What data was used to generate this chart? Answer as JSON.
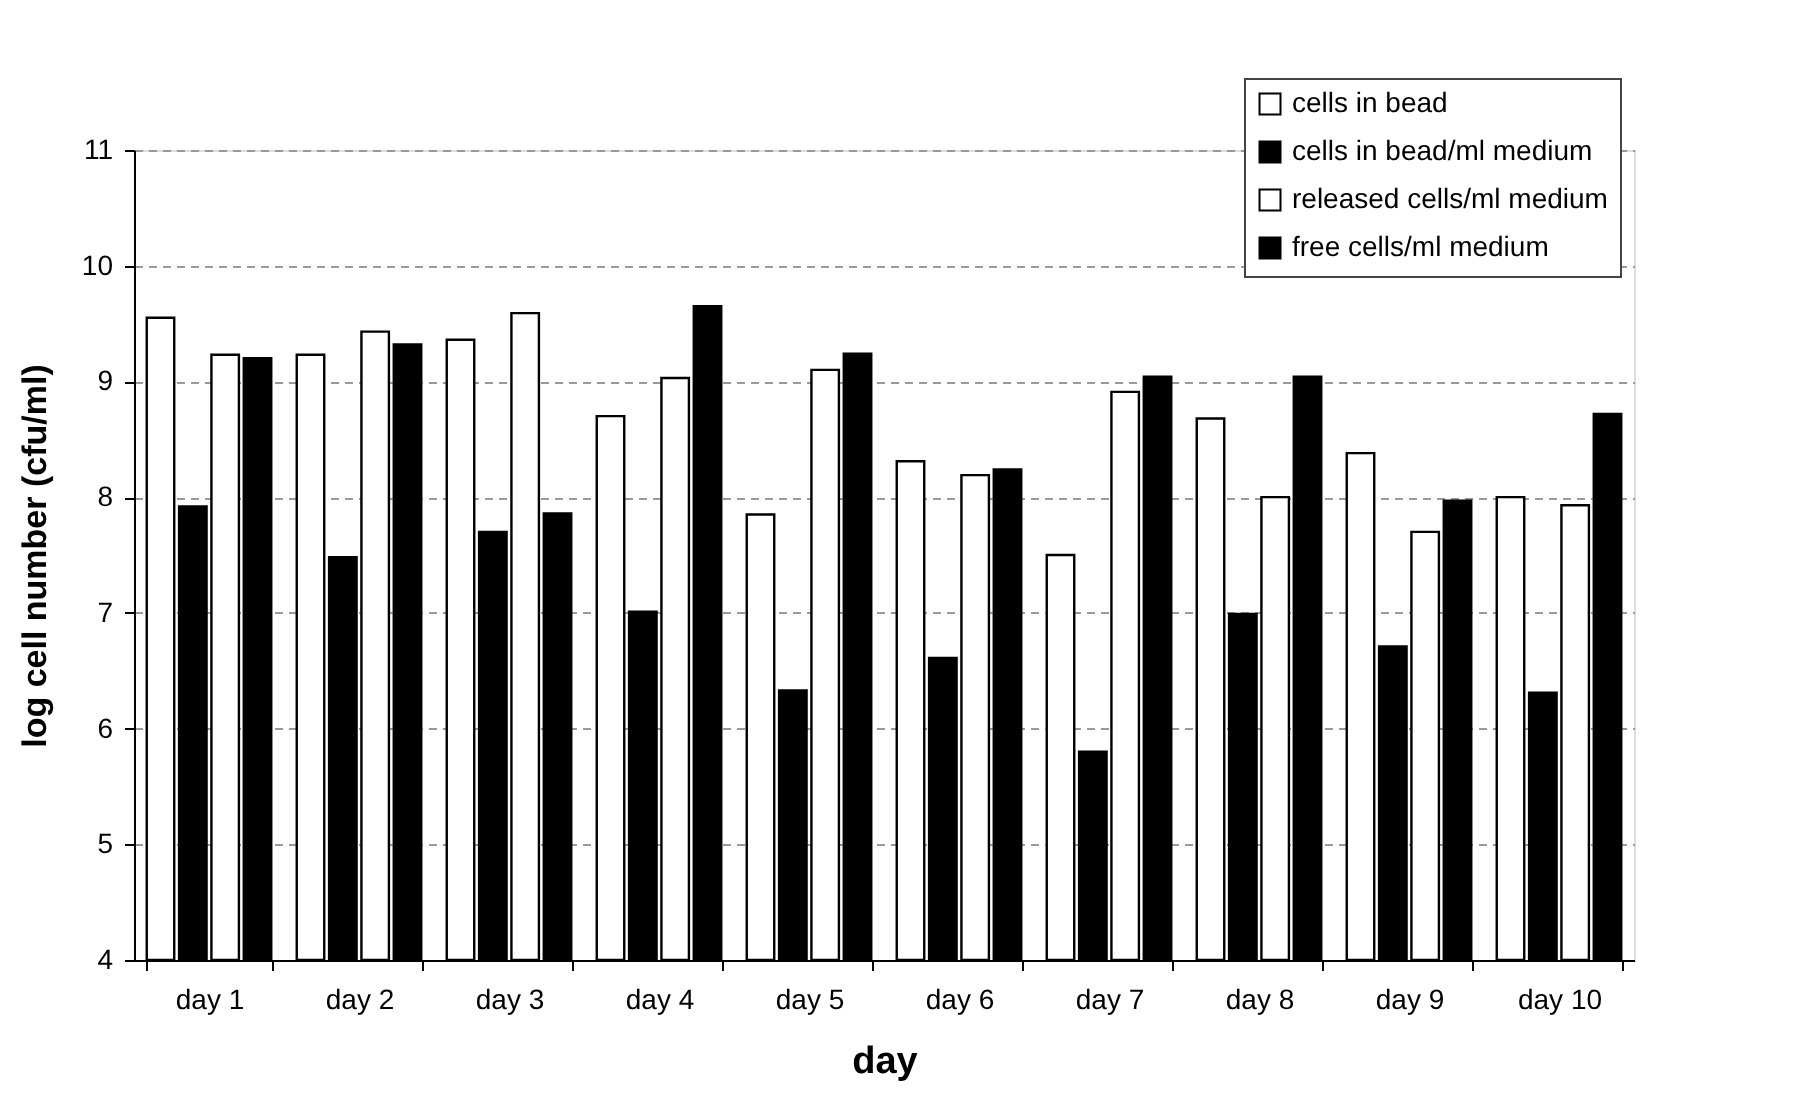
{
  "chart_data": {
    "type": "bar",
    "xlabel": "day",
    "ylabel": "log cell number (cfu/ml)",
    "categories": [
      "day 1",
      "day 2",
      "day 3",
      "day 4",
      "day 5",
      "day 6",
      "day 7",
      "day 8",
      "day 9",
      "day 10"
    ],
    "series": [
      {
        "name": "cells in bead",
        "color": "#ffffff",
        "values": [
          9.55,
          9.23,
          9.36,
          8.7,
          7.85,
          8.31,
          7.5,
          8.68,
          8.38,
          8.0
        ]
      },
      {
        "name": "cells in bead/ml medium",
        "color": "#000000",
        "values": [
          7.92,
          7.48,
          7.7,
          7.01,
          6.33,
          6.61,
          5.8,
          6.99,
          6.71,
          6.31
        ]
      },
      {
        "name": "released cells/ml medium",
        "color": "#ffffff",
        "values": [
          9.23,
          9.43,
          9.59,
          9.03,
          9.1,
          8.19,
          8.91,
          8.0,
          7.7,
          7.93
        ]
      },
      {
        "name": "free cells/ml medium",
        "color": "#000000",
        "values": [
          9.2,
          9.32,
          7.86,
          9.65,
          9.24,
          8.24,
          9.04,
          9.04,
          7.97,
          8.72
        ]
      }
    ],
    "ylim": [
      4,
      11
    ],
    "yticks": [
      4,
      5,
      6,
      7,
      8,
      9,
      10,
      11
    ],
    "grid": "y",
    "legend": "top right"
  }
}
